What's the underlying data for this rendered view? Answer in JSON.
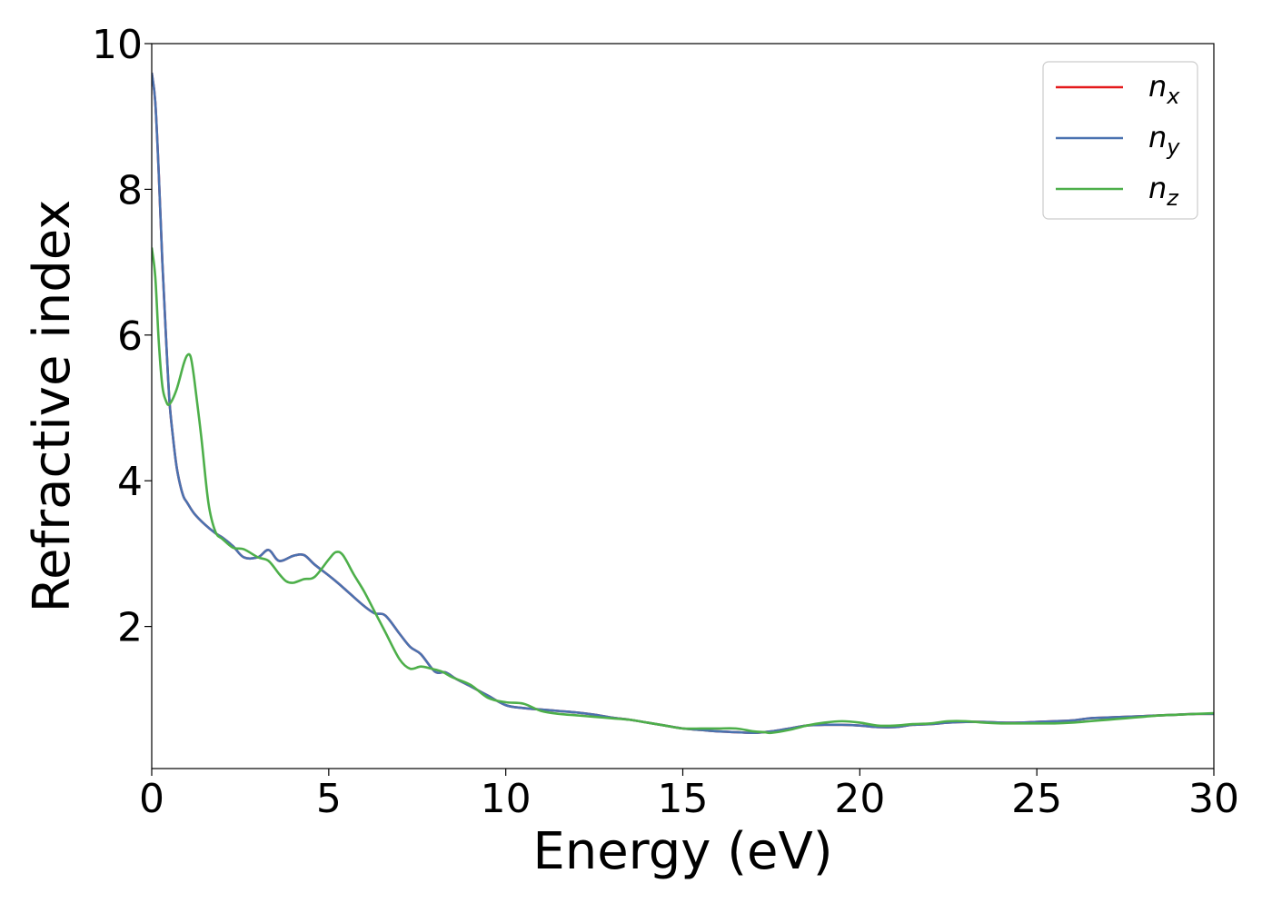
{
  "chart_data": {
    "type": "line",
    "xlabel": "Energy (eV)",
    "ylabel": "Refractive index",
    "xlim": [
      0,
      30
    ],
    "ylim": [
      0.05,
      10
    ],
    "x_ticks": [
      0,
      5,
      10,
      15,
      20,
      25,
      30
    ],
    "y_ticks": [
      2,
      4,
      6,
      8,
      10
    ],
    "grid": false,
    "legend_position": "top-right",
    "series": [
      {
        "name": "n_x",
        "base": "n",
        "sub": "x",
        "color": "#e41a1c",
        "x": [
          0,
          0.1,
          0.2,
          0.3,
          0.4,
          0.5,
          0.6,
          0.7,
          0.8,
          0.9,
          1.0,
          1.2,
          1.5,
          1.8,
          2.0,
          2.3,
          2.6,
          3.0,
          3.3,
          3.6,
          4.0,
          4.3,
          4.6,
          5.0,
          5.3,
          5.6,
          6.0,
          6.3,
          6.6,
          7.0,
          7.3,
          7.6,
          8.0,
          8.3,
          8.6,
          9.0,
          9.5,
          10.0,
          10.5,
          11.0,
          11.5,
          12.0,
          12.5,
          13.0,
          13.5,
          14.0,
          14.5,
          15.0,
          15.5,
          16.0,
          16.5,
          17.0,
          17.5,
          18.0,
          18.5,
          19.0,
          19.5,
          20.0,
          20.5,
          21.0,
          21.5,
          22.0,
          22.5,
          23.0,
          23.5,
          24.0,
          24.5,
          25.0,
          25.5,
          26.0,
          26.5,
          27.0,
          27.5,
          28.0,
          28.5,
          29.0,
          29.5,
          30.0
        ],
        "y": [
          9.6,
          9.2,
          8.2,
          7.0,
          6.0,
          5.1,
          4.6,
          4.2,
          3.95,
          3.78,
          3.7,
          3.55,
          3.4,
          3.28,
          3.22,
          3.1,
          2.95,
          2.95,
          3.05,
          2.9,
          2.97,
          2.98,
          2.85,
          2.7,
          2.58,
          2.45,
          2.28,
          2.18,
          2.15,
          1.9,
          1.72,
          1.62,
          1.38,
          1.37,
          1.28,
          1.18,
          1.05,
          0.92,
          0.88,
          0.86,
          0.84,
          0.82,
          0.79,
          0.75,
          0.72,
          0.68,
          0.64,
          0.6,
          0.58,
          0.56,
          0.55,
          0.54,
          0.56,
          0.6,
          0.64,
          0.65,
          0.65,
          0.64,
          0.62,
          0.62,
          0.65,
          0.66,
          0.68,
          0.69,
          0.69,
          0.68,
          0.68,
          0.69,
          0.7,
          0.71,
          0.74,
          0.75,
          0.76,
          0.77,
          0.78,
          0.79,
          0.8,
          0.8
        ]
      },
      {
        "name": "n_y",
        "base": "n",
        "sub": "y",
        "color": "#4a72b0",
        "x": [
          0,
          0.1,
          0.2,
          0.3,
          0.4,
          0.5,
          0.6,
          0.7,
          0.8,
          0.9,
          1.0,
          1.2,
          1.5,
          1.8,
          2.0,
          2.3,
          2.6,
          3.0,
          3.3,
          3.6,
          4.0,
          4.3,
          4.6,
          5.0,
          5.3,
          5.6,
          6.0,
          6.3,
          6.6,
          7.0,
          7.3,
          7.6,
          8.0,
          8.3,
          8.6,
          9.0,
          9.5,
          10.0,
          10.5,
          11.0,
          11.5,
          12.0,
          12.5,
          13.0,
          13.5,
          14.0,
          14.5,
          15.0,
          15.5,
          16.0,
          16.5,
          17.0,
          17.5,
          18.0,
          18.5,
          19.0,
          19.5,
          20.0,
          20.5,
          21.0,
          21.5,
          22.0,
          22.5,
          23.0,
          23.5,
          24.0,
          24.5,
          25.0,
          25.5,
          26.0,
          26.5,
          27.0,
          27.5,
          28.0,
          28.5,
          29.0,
          29.5,
          30.0
        ],
        "y": [
          9.6,
          9.2,
          8.2,
          7.0,
          6.0,
          5.1,
          4.6,
          4.2,
          3.95,
          3.78,
          3.7,
          3.55,
          3.4,
          3.28,
          3.22,
          3.1,
          2.95,
          2.95,
          3.05,
          2.9,
          2.97,
          2.98,
          2.85,
          2.7,
          2.58,
          2.45,
          2.28,
          2.18,
          2.15,
          1.9,
          1.72,
          1.62,
          1.38,
          1.37,
          1.28,
          1.18,
          1.05,
          0.92,
          0.88,
          0.86,
          0.84,
          0.82,
          0.79,
          0.75,
          0.72,
          0.68,
          0.64,
          0.6,
          0.58,
          0.56,
          0.55,
          0.54,
          0.56,
          0.6,
          0.64,
          0.65,
          0.65,
          0.64,
          0.62,
          0.62,
          0.65,
          0.66,
          0.68,
          0.69,
          0.69,
          0.68,
          0.68,
          0.69,
          0.7,
          0.71,
          0.74,
          0.75,
          0.76,
          0.77,
          0.78,
          0.79,
          0.8,
          0.8
        ]
      },
      {
        "name": "n_z",
        "base": "n",
        "sub": "z",
        "color": "#4daf4a",
        "x": [
          0,
          0.1,
          0.2,
          0.3,
          0.4,
          0.5,
          0.7,
          0.9,
          1.0,
          1.1,
          1.2,
          1.4,
          1.6,
          1.8,
          2.0,
          2.3,
          2.6,
          3.0,
          3.3,
          3.6,
          3.8,
          4.0,
          4.3,
          4.6,
          5.0,
          5.2,
          5.4,
          5.7,
          6.0,
          6.3,
          6.6,
          7.0,
          7.3,
          7.6,
          7.9,
          8.2,
          8.5,
          9.0,
          9.5,
          10.0,
          10.5,
          11.0,
          11.5,
          12.0,
          12.5,
          13.0,
          13.5,
          14.0,
          14.5,
          15.0,
          15.5,
          16.0,
          16.5,
          17.0,
          17.3,
          17.5,
          18.0,
          18.5,
          19.0,
          19.5,
          20.0,
          20.5,
          21.0,
          21.5,
          22.0,
          22.5,
          23.0,
          23.5,
          24.0,
          24.5,
          25.0,
          25.5,
          26.0,
          26.5,
          27.0,
          27.5,
          28.0,
          28.5,
          29.0,
          29.5,
          30.0
        ],
        "y": [
          7.2,
          6.8,
          5.9,
          5.3,
          5.1,
          5.05,
          5.25,
          5.6,
          5.72,
          5.7,
          5.4,
          4.6,
          3.7,
          3.3,
          3.2,
          3.08,
          3.06,
          2.95,
          2.9,
          2.72,
          2.62,
          2.6,
          2.65,
          2.68,
          2.92,
          3.02,
          2.98,
          2.72,
          2.48,
          2.2,
          1.92,
          1.55,
          1.42,
          1.45,
          1.42,
          1.38,
          1.3,
          1.2,
          1.02,
          0.96,
          0.94,
          0.84,
          0.8,
          0.78,
          0.76,
          0.74,
          0.72,
          0.68,
          0.64,
          0.6,
          0.6,
          0.6,
          0.6,
          0.56,
          0.55,
          0.54,
          0.58,
          0.64,
          0.68,
          0.7,
          0.68,
          0.64,
          0.64,
          0.66,
          0.67,
          0.7,
          0.7,
          0.68,
          0.67,
          0.67,
          0.67,
          0.67,
          0.68,
          0.7,
          0.72,
          0.74,
          0.76,
          0.78,
          0.79,
          0.8,
          0.81
        ]
      }
    ]
  }
}
